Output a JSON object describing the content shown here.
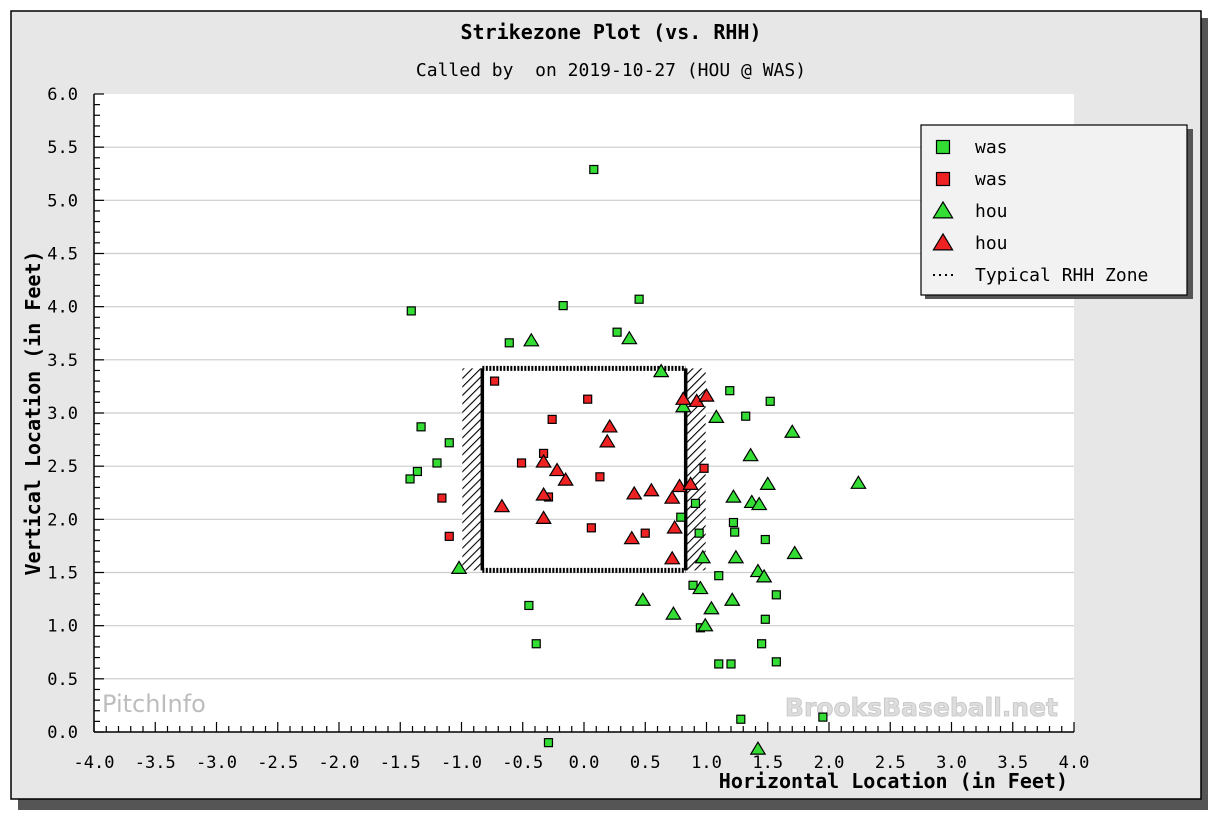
{
  "chart_data": {
    "type": "scatter",
    "title": "Strikezone Plot (vs. RHH)",
    "subtitle": "Called by  on 2019-10-27 (HOU @ WAS)",
    "xlabel": "Horizontal Location (in Feet)",
    "ylabel": "Vertical Location (in Feet)",
    "xlim": [
      -4.0,
      4.0
    ],
    "ylim": [
      0.0,
      6.0
    ],
    "x_ticks": [
      "-4.0",
      "-3.5",
      "-3.0",
      "-2.5",
      "-2.0",
      "-1.5",
      "-1.0",
      "-0.5",
      "0.0",
      "0.5",
      "1.0",
      "1.5",
      "2.0",
      "2.5",
      "3.0",
      "3.5",
      "4.0"
    ],
    "y_ticks": [
      "0.0",
      "0.5",
      "1.0",
      "1.5",
      "2.0",
      "2.5",
      "3.0",
      "3.5",
      "4.0",
      "4.5",
      "5.0",
      "5.5",
      "6.0"
    ],
    "grid": "horizontal",
    "legend_position": "top-right",
    "strike_zone": {
      "x": [
        -0.83,
        0.83
      ],
      "y": [
        1.52,
        3.42
      ]
    },
    "series": [
      {
        "name": "was",
        "marker": "square",
        "color": "#33dd33",
        "points": [
          [
            0.08,
            5.29
          ],
          [
            -0.17,
            4.01
          ],
          [
            0.45,
            4.07
          ],
          [
            -1.41,
            3.96
          ],
          [
            0.27,
            3.76
          ],
          [
            -0.61,
            3.66
          ],
          [
            -1.33,
            2.87
          ],
          [
            -1.1,
            2.72
          ],
          [
            -1.2,
            2.53
          ],
          [
            -1.36,
            2.45
          ],
          [
            -1.42,
            2.38
          ],
          [
            1.19,
            3.21
          ],
          [
            1.32,
            2.97
          ],
          [
            1.52,
            3.11
          ],
          [
            1.22,
            1.97
          ],
          [
            1.23,
            1.88
          ],
          [
            0.79,
            2.02
          ],
          [
            0.94,
            1.87
          ],
          [
            0.91,
            2.15
          ],
          [
            1.48,
            1.81
          ],
          [
            0.89,
            1.38
          ],
          [
            1.1,
            1.47
          ],
          [
            1.57,
            1.29
          ],
          [
            1.48,
            1.06
          ],
          [
            0.95,
            0.98
          ],
          [
            1.45,
            0.83
          ],
          [
            1.1,
            0.64
          ],
          [
            1.2,
            0.64
          ],
          [
            1.57,
            0.66
          ],
          [
            -0.45,
            1.19
          ],
          [
            -0.39,
            0.83
          ],
          [
            1.28,
            0.12
          ],
          [
            1.95,
            0.14
          ],
          [
            -0.29,
            -0.1
          ]
        ]
      },
      {
        "name": "was",
        "marker": "square",
        "color": "#ee2222",
        "points": [
          [
            -0.73,
            3.3
          ],
          [
            0.03,
            3.13
          ],
          [
            -0.26,
            2.94
          ],
          [
            -0.51,
            2.53
          ],
          [
            -0.33,
            2.62
          ],
          [
            0.13,
            2.4
          ],
          [
            0.98,
            2.48
          ],
          [
            -0.29,
            2.21
          ],
          [
            -1.16,
            2.2
          ],
          [
            -1.1,
            1.84
          ],
          [
            0.06,
            1.92
          ],
          [
            0.5,
            1.87
          ]
        ]
      },
      {
        "name": "hou",
        "marker": "triangle",
        "color": "#33dd33",
        "points": [
          [
            -0.43,
            3.68
          ],
          [
            0.37,
            3.7
          ],
          [
            0.63,
            3.39
          ],
          [
            0.81,
            3.06
          ],
          [
            1.08,
            2.96
          ],
          [
            1.7,
            2.82
          ],
          [
            1.36,
            2.6
          ],
          [
            1.5,
            2.33
          ],
          [
            2.24,
            2.34
          ],
          [
            1.22,
            2.21
          ],
          [
            1.37,
            2.16
          ],
          [
            1.43,
            2.14
          ],
          [
            0.97,
            1.64
          ],
          [
            1.24,
            1.64
          ],
          [
            1.72,
            1.68
          ],
          [
            -1.02,
            1.54
          ],
          [
            0.48,
            1.24
          ],
          [
            0.95,
            1.35
          ],
          [
            1.21,
            1.24
          ],
          [
            1.42,
            1.51
          ],
          [
            1.47,
            1.46
          ],
          [
            0.73,
            1.11
          ],
          [
            1.04,
            1.16
          ],
          [
            0.99,
            1.0
          ],
          [
            1.42,
            -0.16
          ]
        ]
      },
      {
        "name": "hou",
        "marker": "triangle",
        "color": "#ee2222",
        "points": [
          [
            0.21,
            2.87
          ],
          [
            0.19,
            2.73
          ],
          [
            0.81,
            3.13
          ],
          [
            0.92,
            3.11
          ],
          [
            1.0,
            3.16
          ],
          [
            -0.33,
            2.54
          ],
          [
            -0.22,
            2.46
          ],
          [
            -0.15,
            2.37
          ],
          [
            -0.33,
            2.23
          ],
          [
            -0.33,
            2.01
          ],
          [
            -0.67,
            2.12
          ],
          [
            0.41,
            2.24
          ],
          [
            0.55,
            2.27
          ],
          [
            0.78,
            2.31
          ],
          [
            0.87,
            2.33
          ],
          [
            0.72,
            2.2
          ],
          [
            0.39,
            1.82
          ],
          [
            0.74,
            1.92
          ],
          [
            0.72,
            1.63
          ]
        ]
      }
    ],
    "legend": [
      {
        "label": "was",
        "marker": "square",
        "color": "#33dd33"
      },
      {
        "label": "was",
        "marker": "square",
        "color": "#ee2222"
      },
      {
        "label": "hou",
        "marker": "triangle",
        "color": "#33dd33"
      },
      {
        "label": "hou",
        "marker": "triangle",
        "color": "#ee2222"
      },
      {
        "label": "Typical RHH Zone",
        "marker": "dotted-line",
        "color": "#000000"
      }
    ],
    "watermarks": [
      "PitchInfo",
      "BrooksBaseball.net"
    ]
  }
}
